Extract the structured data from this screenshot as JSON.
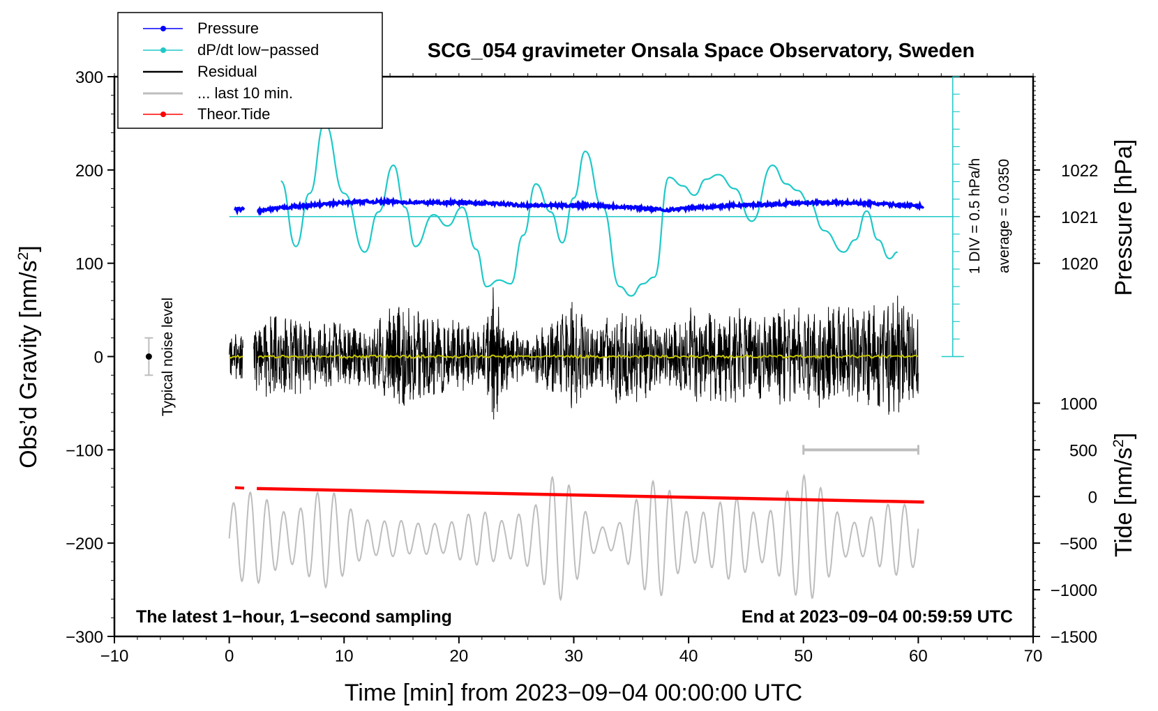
{
  "chart_data": {
    "type": "line",
    "title": "SCG_054 gravimeter Onsala Space Observatory, Sweden",
    "xlabel": "Time [min] from 2023−09−04 00:00:00 UTC",
    "ylabel_main": "Obs’d Gravity [nm/s",
    "ylabel_sup": "2",
    "ylabel_close": "]",
    "y2label_pressure": "Pressure [hPa]",
    "y2label_tide_main": "Tide [nm/s",
    "y2label_tide_sup": "2",
    "y2label_tide_close": "]",
    "xlim": [
      -10,
      70
    ],
    "ylim": [
      -300,
      300
    ],
    "xticks": [
      -10,
      0,
      10,
      20,
      30,
      40,
      50,
      60,
      70
    ],
    "xtick_labels": [
      "−10",
      "0",
      "10",
      "20",
      "30",
      "40",
      "50",
      "60",
      "70"
    ],
    "yticks": [
      -300,
      -200,
      -100,
      0,
      100,
      200,
      300
    ],
    "ytick_labels": [
      "−300",
      "−200",
      "−100",
      "0",
      "100",
      "200",
      "300"
    ],
    "pressure_axis": {
      "ticks": [
        1020,
        1021,
        1022
      ],
      "tick_labels": [
        "1020",
        "1021",
        "1022"
      ],
      "gravity_equiv": [
        100,
        150,
        200
      ]
    },
    "tide_axis": {
      "ticks": [
        -1500,
        -1000,
        -500,
        0,
        500,
        1000
      ],
      "tick_labels": [
        "−1500",
        "−1000",
        "−500",
        "0",
        "500",
        "1000"
      ]
    },
    "legend": {
      "position": "top-left",
      "entries": [
        {
          "label": "Pressure",
          "color": "#0000ff",
          "style": "line-dot"
        },
        {
          "label": "dP/dt low−passed",
          "color": "#1ec8c8",
          "style": "line-dot"
        },
        {
          "label": "Residual",
          "color": "#000000",
          "style": "line"
        },
        {
          "label": "... last 10 min.",
          "color": "#bdbdbd",
          "style": "line"
        },
        {
          "label": "Theor.Tide",
          "color": "#ff0000",
          "style": "line-dot"
        }
      ]
    },
    "annotations": {
      "noise": "Typical noise level",
      "div": "1 DIV = 0.5 hPa/h",
      "average": "average = 0.0350",
      "bottom_left": "The latest 1−hour, 1−second sampling",
      "bottom_right": "End at 2023−09−04 00:59:59 UTC"
    },
    "series": [
      {
        "name": "Pressure",
        "color": "#0000ff",
        "x": [
          0.5,
          1.5,
          2.5,
          5,
          8,
          11,
          14,
          17,
          20,
          23,
          26,
          29,
          32,
          35,
          38,
          41,
          44,
          47,
          50,
          53,
          56,
          59,
          60.5
        ],
        "y": [
          157,
          159,
          156,
          160,
          163,
          166,
          166,
          165,
          165,
          164,
          162,
          162,
          162,
          160,
          157,
          160,
          162,
          163,
          165,
          165,
          164,
          162,
          161
        ]
      },
      {
        "name": "dP/dt low-passed",
        "color": "#1ec8c8",
        "x": [
          4.5,
          5.8,
          7,
          8.3,
          10,
          11.8,
          13,
          14.3,
          15.3,
          16.2,
          17.8,
          19,
          20.3,
          21.5,
          22.4,
          23.5,
          24.5,
          25.6,
          26.7,
          28,
          29,
          30,
          31,
          32.5,
          34,
          35,
          36,
          37,
          38.3,
          39.5,
          40.5,
          41.5,
          42.6,
          44,
          45.5,
          47.3,
          48.5,
          49.5,
          50.5,
          51.8,
          53.5,
          54.5,
          55.5,
          56.5,
          57.5,
          58.2
        ],
        "y": [
          188,
          118,
          175,
          250,
          175,
          112,
          155,
          205,
          160,
          118,
          152,
          140,
          160,
          115,
          75,
          82,
          78,
          130,
          185,
          155,
          122,
          170,
          220,
          160,
          75,
          65,
          78,
          85,
          192,
          183,
          173,
          190,
          195,
          180,
          145,
          205,
          185,
          178,
          165,
          135,
          112,
          125,
          156,
          125,
          105,
          112
        ]
      },
      {
        "name": "Residual",
        "color": "#000000",
        "x_range": [
          0,
          60
        ],
        "gaps": [
          [
            1.2,
            2.1
          ]
        ],
        "envelope": [
          [
            0,
            22
          ],
          [
            1,
            30
          ],
          [
            2.5,
            40
          ],
          [
            4,
            48
          ],
          [
            6,
            42
          ],
          [
            8,
            35
          ],
          [
            10,
            40
          ],
          [
            12,
            28
          ],
          [
            14,
            60
          ],
          [
            16,
            55
          ],
          [
            18,
            45
          ],
          [
            20,
            40
          ],
          [
            22,
            30
          ],
          [
            23,
            80
          ],
          [
            24,
            38
          ],
          [
            26,
            25
          ],
          [
            28,
            40
          ],
          [
            30,
            60
          ],
          [
            32,
            38
          ],
          [
            34,
            58
          ],
          [
            36,
            50
          ],
          [
            38,
            30
          ],
          [
            40,
            55
          ],
          [
            42,
            48
          ],
          [
            44,
            60
          ],
          [
            46,
            45
          ],
          [
            48,
            55
          ],
          [
            50,
            52
          ],
          [
            52,
            58
          ],
          [
            54,
            62
          ],
          [
            56,
            55
          ],
          [
            58,
            70
          ],
          [
            60,
            48
          ]
        ]
      },
      {
        "name": "Residual mean",
        "color": "#c8c800",
        "x_range": [
          0,
          60
        ],
        "y": 0
      },
      {
        "name": "... last 10 min.",
        "color": "#bdbdbd",
        "x_range": [
          0,
          60
        ],
        "center": -195,
        "envelope": [
          [
            0,
            45
          ],
          [
            2,
            50
          ],
          [
            5,
            55
          ],
          [
            8,
            55
          ],
          [
            10,
            45
          ],
          [
            12,
            40
          ],
          [
            14,
            25
          ],
          [
            16,
            15
          ],
          [
            18,
            25
          ],
          [
            20,
            40
          ],
          [
            22,
            30
          ],
          [
            24,
            20
          ],
          [
            26,
            60
          ],
          [
            28,
            85
          ],
          [
            30,
            50
          ],
          [
            32,
            20
          ],
          [
            34,
            30
          ],
          [
            36,
            55
          ],
          [
            38,
            70
          ],
          [
            40,
            55
          ],
          [
            42,
            40
          ],
          [
            44,
            45
          ],
          [
            46,
            40
          ],
          [
            48,
            75
          ],
          [
            50,
            70
          ],
          [
            52,
            55
          ],
          [
            54,
            35
          ],
          [
            56,
            30
          ],
          [
            58,
            40
          ],
          [
            60,
            45
          ]
        ]
      },
      {
        "name": "Theor.Tide",
        "color": "#ff0000",
        "x": [
          0.5,
          1.3,
          2.4,
          60.5
        ],
        "y": [
          -140.5,
          -141,
          -141.5,
          -156
        ]
      }
    ],
    "noise_level": {
      "x": -7,
      "y": 0,
      "bar_low": -20,
      "bar_high": 20
    },
    "last10_bar": {
      "x": [
        50,
        60
      ],
      "y": -100
    },
    "dpdt_axis": {
      "x": 63,
      "y_top": 300,
      "y_bottom": 0,
      "baseline": 150
    }
  }
}
